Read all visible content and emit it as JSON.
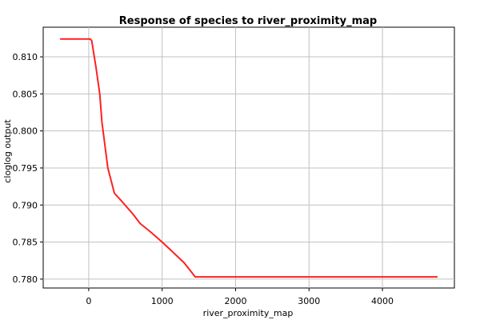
{
  "chart_data": {
    "type": "line",
    "title": "Response of species to river_proximity_map",
    "xlabel": "river_proximity_map",
    "ylabel": "cloglog output",
    "xlim": [
      -620,
      4980
    ],
    "ylim": [
      0.7788,
      0.814
    ],
    "grid": true,
    "x_ticks": [
      0,
      1000,
      2000,
      3000,
      4000
    ],
    "x_tick_labels": [
      "0",
      "1000",
      "2000",
      "3000",
      "4000"
    ],
    "y_ticks": [
      0.78,
      0.785,
      0.79,
      0.795,
      0.8,
      0.805,
      0.81
    ],
    "y_tick_labels": [
      "0.780",
      "0.785",
      "0.790",
      "0.795",
      "0.800",
      "0.805",
      "0.810"
    ],
    "series": [
      {
        "color": "#ff2020",
        "x": [
          -390,
          20,
          40,
          100,
          150,
          180,
          260,
          350,
          450,
          600,
          700,
          850,
          1000,
          1150,
          1300,
          1450,
          4750
        ],
        "y": [
          0.8124,
          0.8124,
          0.8122,
          0.8085,
          0.805,
          0.8012,
          0.795,
          0.7916,
          0.7905,
          0.7888,
          0.7875,
          0.7863,
          0.785,
          0.7836,
          0.7822,
          0.7803,
          0.7803
        ]
      }
    ]
  }
}
